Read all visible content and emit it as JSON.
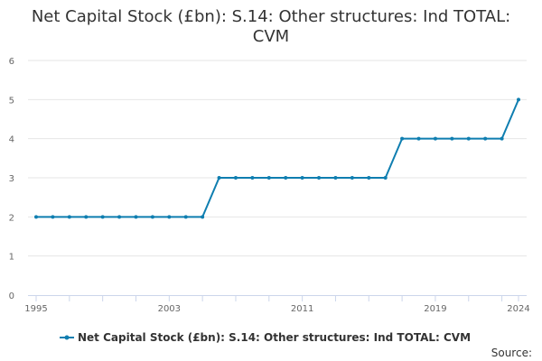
{
  "chart_data": {
    "type": "line",
    "title": "Net Capital Stock (£bn): S.14: Other structures: Ind TOTAL: CVM",
    "title_lines": [
      "Net Capital Stock (£bn): S.14: Other structures: Ind TOTAL:",
      "CVM"
    ],
    "xlabel": "",
    "ylabel": "",
    "x": [
      1995,
      1996,
      1997,
      1998,
      1999,
      2000,
      2001,
      2002,
      2003,
      2004,
      2005,
      2006,
      2007,
      2008,
      2009,
      2010,
      2011,
      2012,
      2013,
      2014,
      2015,
      2016,
      2017,
      2018,
      2019,
      2020,
      2021,
      2022,
      2023,
      2024
    ],
    "series": [
      {
        "name": "Net Capital Stock (£bn): S.14: Other structures: Ind TOTAL: CVM",
        "color": "#0f7eb0",
        "values": [
          2,
          2,
          2,
          2,
          2,
          2,
          2,
          2,
          2,
          2,
          2,
          3,
          3,
          3,
          3,
          3,
          3,
          3,
          3,
          3,
          3,
          3,
          4,
          4,
          4,
          4,
          4,
          4,
          4,
          5
        ]
      }
    ],
    "xlim": [
      1995,
      2024
    ],
    "ylim": [
      0,
      6
    ],
    "x_tick_labels": [
      "1995",
      "2003",
      "2011",
      "2019",
      "2024"
    ],
    "x_tick_values": [
      1995,
      2003,
      2011,
      2019,
      2024
    ],
    "y_tick_labels": [
      "0",
      "1",
      "2",
      "3",
      "4",
      "5",
      "6"
    ],
    "y_tick_values": [
      0,
      1,
      2,
      3,
      4,
      5,
      6
    ],
    "grid": true,
    "legend": "bottom-center"
  },
  "source_label": "Source:",
  "colors": {
    "series": "#0f7eb0",
    "grid": "#e6e6e6",
    "axis": "#ccd6eb"
  }
}
